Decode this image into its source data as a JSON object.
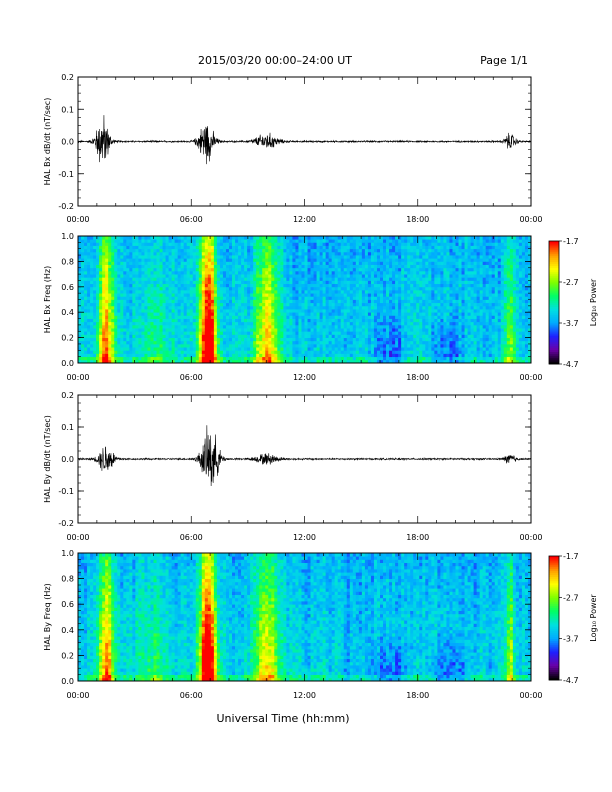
{
  "header": {
    "title": "2015/03/20  00:00–24:00 UT",
    "page": "Page 1/1"
  },
  "footer": {
    "xlabel": "Universal Time (hh:mm)"
  },
  "colorbar": {
    "label": "Log₁₀ Power",
    "ticks": [
      "-1.7",
      "-2.7",
      "-3.7",
      "-4.7"
    ],
    "range": [
      -4.7,
      -1.7
    ],
    "colors": [
      "#000000",
      "#6a00a8",
      "#1e20ff",
      "#00aaff",
      "#00e0e0",
      "#00ff66",
      "#7cff00",
      "#ffff00",
      "#ffa000",
      "#ff0000"
    ]
  },
  "chart_data": [
    {
      "type": "line",
      "ylabel": "HAL Bx dB/dt (nT/sec)",
      "ylim": [
        -0.2,
        0.2
      ],
      "yticks": [
        "0.2",
        "0.1",
        "0.0",
        "-0.1",
        "-0.2"
      ],
      "xticks": [
        "00:00",
        "06:00",
        "12:00",
        "18:00",
        "00:00"
      ],
      "xrange_hours": [
        0,
        24
      ],
      "activity": [
        {
          "center_h": 1.3,
          "width_h": 0.7,
          "amp": 0.1
        },
        {
          "center_h": 6.8,
          "width_h": 0.8,
          "amp": 0.08
        },
        {
          "center_h": 10.0,
          "width_h": 1.2,
          "amp": 0.03
        },
        {
          "center_h": 22.9,
          "width_h": 0.6,
          "amp": 0.03
        }
      ]
    },
    {
      "type": "heatmap",
      "ylabel": "HAL Bx Freq (Hz)",
      "ylim": [
        0.0,
        1.0
      ],
      "yticks": [
        "1.0",
        "0.8",
        "0.6",
        "0.4",
        "0.2",
        "0.0"
      ],
      "xticks": [
        "00:00",
        "06:00",
        "12:00",
        "18:00",
        "00:00"
      ],
      "zlabel": "Log₁₀ Power",
      "zlim": [
        -4.7,
        -1.7
      ]
    },
    {
      "type": "line",
      "ylabel": "HAL By dB/dt (nT/sec)",
      "ylim": [
        -0.2,
        0.2
      ],
      "yticks": [
        "0.2",
        "0.1",
        "0.0",
        "-0.1",
        "-0.2"
      ],
      "xticks": [
        "00:00",
        "06:00",
        "12:00",
        "18:00",
        "00:00"
      ],
      "xrange_hours": [
        0,
        24
      ],
      "activity": [
        {
          "center_h": 1.5,
          "width_h": 0.8,
          "amp": 0.06
        },
        {
          "center_h": 7.0,
          "width_h": 0.9,
          "amp": 0.12
        },
        {
          "center_h": 10.0,
          "width_h": 1.2,
          "amp": 0.02
        },
        {
          "center_h": 22.9,
          "width_h": 0.6,
          "amp": 0.02
        }
      ]
    },
    {
      "type": "heatmap",
      "ylabel": "HAL By Freq (Hz)",
      "ylim": [
        0.0,
        1.0
      ],
      "yticks": [
        "1.0",
        "0.8",
        "0.6",
        "0.4",
        "0.2",
        "0.0"
      ],
      "xticks": [
        "00:00",
        "06:00",
        "12:00",
        "18:00",
        "00:00"
      ],
      "zlabel": "Log₁₀ Power",
      "zlim": [
        -4.7,
        -1.7
      ]
    }
  ]
}
